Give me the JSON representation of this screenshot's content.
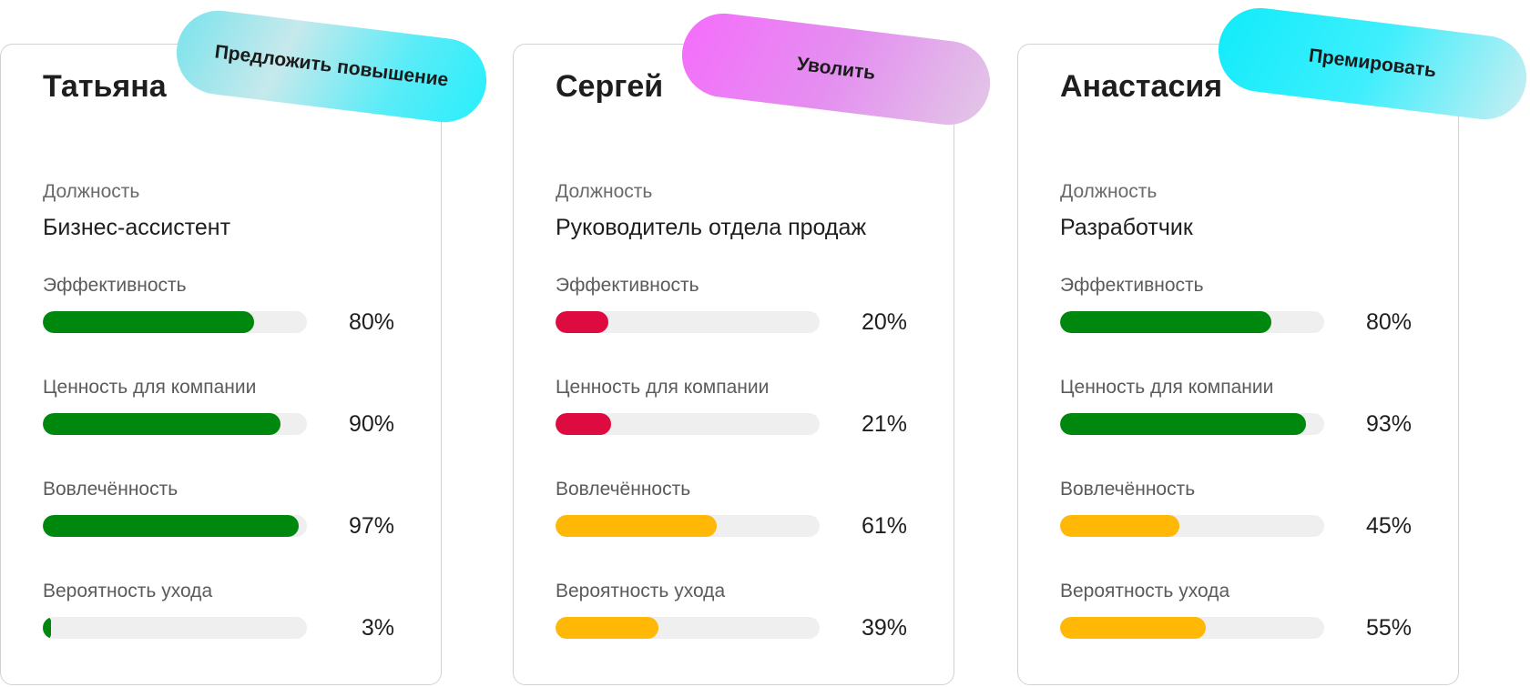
{
  "colors": {
    "good": "#00870e",
    "bad": "#dd0b3f",
    "medium": "#ffb806"
  },
  "role_label": "Должность",
  "employees": [
    {
      "name": "Татьяна",
      "action": "Предложить повышение",
      "role": "Бизнес-ассистент",
      "metrics": [
        {
          "label": "Эффективность",
          "value": "80%",
          "fraction": 0.8,
          "status": "good"
        },
        {
          "label": "Ценность для компании",
          "value": "90%",
          "fraction": 0.9,
          "status": "good"
        },
        {
          "label": "Вовлечённость",
          "value": "97%",
          "fraction": 0.97,
          "status": "good"
        },
        {
          "label": "Вероятность ухода",
          "value": "3%",
          "fraction": 0.03,
          "status": "good"
        }
      ]
    },
    {
      "name": "Сергей",
      "action": "Уволить",
      "role": "Руководитель отдела продаж",
      "metrics": [
        {
          "label": "Эффективность",
          "value": "20%",
          "fraction": 0.2,
          "status": "bad"
        },
        {
          "label": "Ценность для компании",
          "value": "21%",
          "fraction": 0.21,
          "status": "bad"
        },
        {
          "label": "Вовлечённость",
          "value": "61%",
          "fraction": 0.61,
          "status": "medium"
        },
        {
          "label": "Вероятность ухода",
          "value": "39%",
          "fraction": 0.39,
          "status": "medium"
        }
      ]
    },
    {
      "name": "Анастасия",
      "action": "Премировать",
      "role": "Разработчик",
      "metrics": [
        {
          "label": "Эффективность",
          "value": "80%",
          "fraction": 0.8,
          "status": "good"
        },
        {
          "label": "Ценность для компании",
          "value": "93%",
          "fraction": 0.93,
          "status": "good"
        },
        {
          "label": "Вовлечённость",
          "value": "45%",
          "fraction": 0.45,
          "status": "medium"
        },
        {
          "label": "Вероятность ухода",
          "value": "55%",
          "fraction": 0.55,
          "status": "medium"
        }
      ]
    }
  ]
}
